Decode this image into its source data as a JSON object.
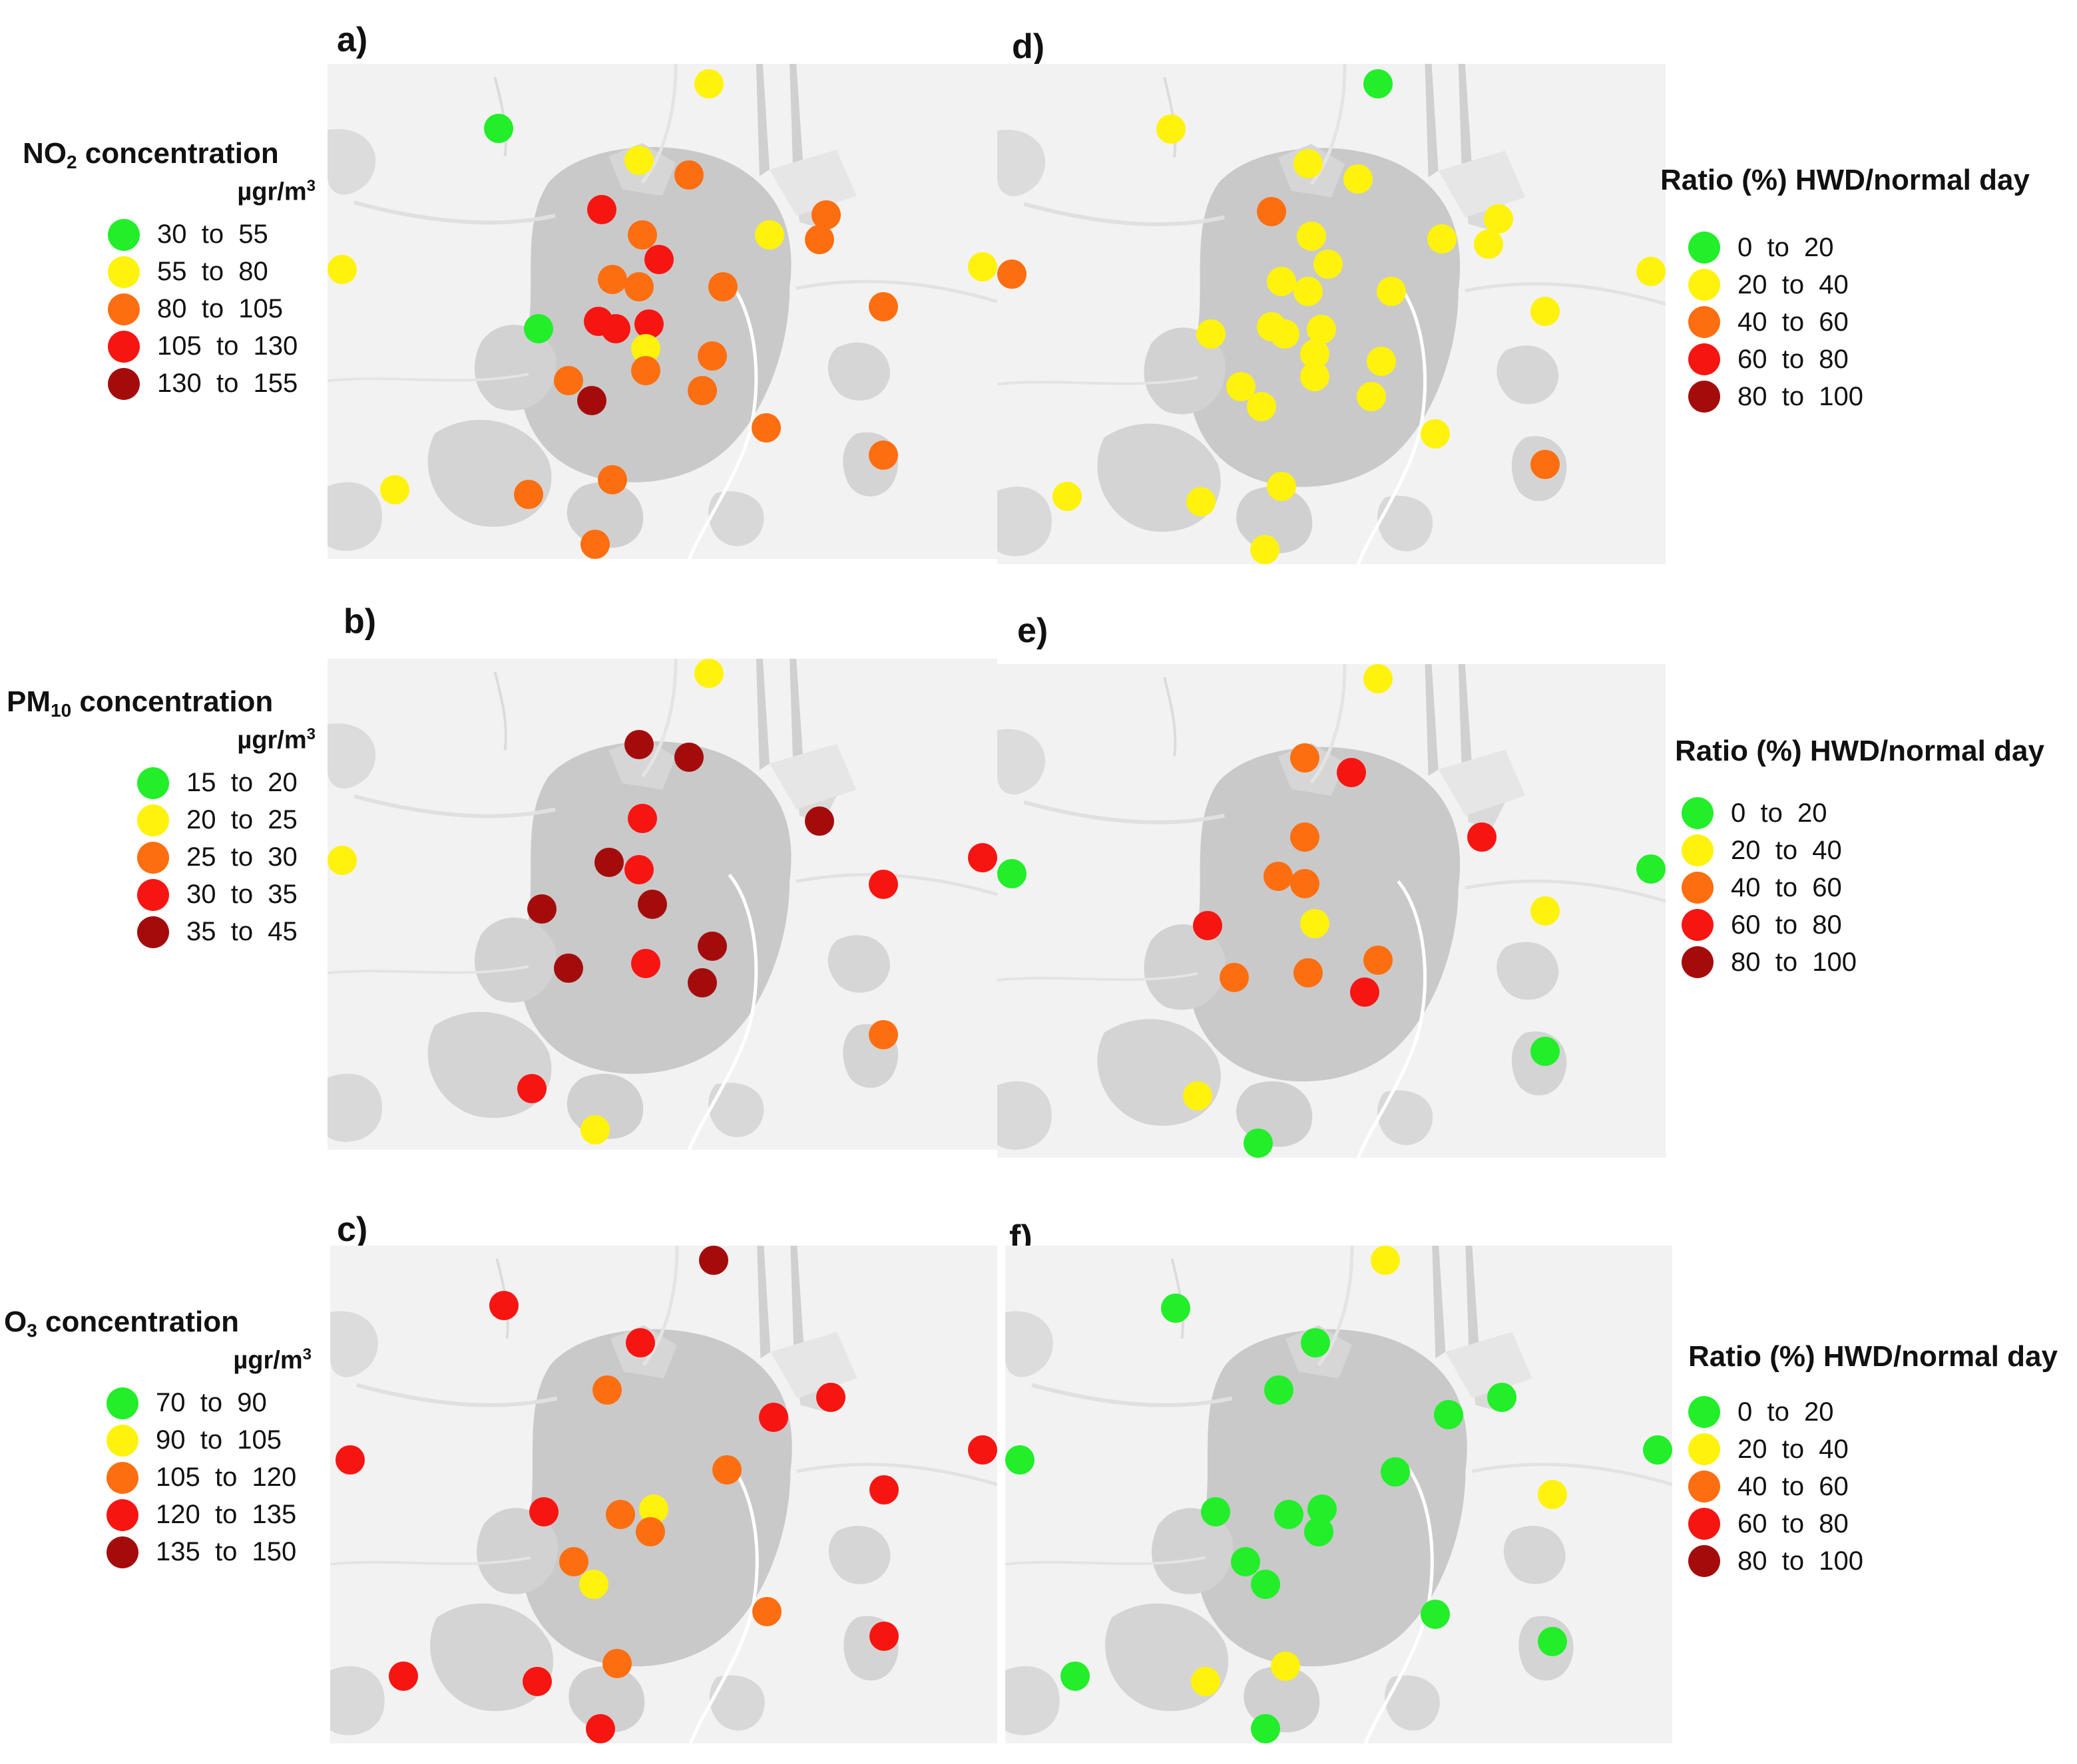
{
  "colors": {
    "c0": "#22ee2a",
    "c1": "#fff20d",
    "c2": "#fd6e10",
    "c3": "#f71512",
    "c4": "#a40c0c"
  },
  "panels": {
    "a": {
      "label": "a)",
      "points": [
        {
          "x": 0.255,
          "y": 0.13,
          "c": 0
        },
        {
          "x": 0.57,
          "y": 0.04,
          "c": 1
        },
        {
          "x": 0.465,
          "y": 0.195,
          "c": 1
        },
        {
          "x": 0.54,
          "y": 0.225,
          "c": 2
        },
        {
          "x": 0.41,
          "y": 0.295,
          "c": 3
        },
        {
          "x": 0.47,
          "y": 0.345,
          "c": 2
        },
        {
          "x": 0.495,
          "y": 0.395,
          "c": 3
        },
        {
          "x": 0.425,
          "y": 0.435,
          "c": 2
        },
        {
          "x": 0.465,
          "y": 0.45,
          "c": 2
        },
        {
          "x": 0.59,
          "y": 0.45,
          "c": 2
        },
        {
          "x": 0.66,
          "y": 0.345,
          "c": 1
        },
        {
          "x": 0.745,
          "y": 0.305,
          "c": 2
        },
        {
          "x": 0.735,
          "y": 0.355,
          "c": 2
        },
        {
          "x": 0.02,
          "y": 0.415,
          "c": 1
        },
        {
          "x": 0.315,
          "y": 0.535,
          "c": 0
        },
        {
          "x": 0.405,
          "y": 0.52,
          "c": 3
        },
        {
          "x": 0.43,
          "y": 0.535,
          "c": 3
        },
        {
          "x": 0.48,
          "y": 0.525,
          "c": 3
        },
        {
          "x": 0.475,
          "y": 0.575,
          "c": 1
        },
        {
          "x": 0.475,
          "y": 0.62,
          "c": 2
        },
        {
          "x": 0.575,
          "y": 0.59,
          "c": 2
        },
        {
          "x": 0.36,
          "y": 0.64,
          "c": 2
        },
        {
          "x": 0.395,
          "y": 0.68,
          "c": 4
        },
        {
          "x": 0.56,
          "y": 0.66,
          "c": 2
        },
        {
          "x": 0.655,
          "y": 0.735,
          "c": 2
        },
        {
          "x": 0.83,
          "y": 0.49,
          "c": 2
        },
        {
          "x": 0.83,
          "y": 0.79,
          "c": 2
        },
        {
          "x": 0.1,
          "y": 0.86,
          "c": 1
        },
        {
          "x": 0.425,
          "y": 0.84,
          "c": 2
        },
        {
          "x": 0.3,
          "y": 0.87,
          "c": 2
        },
        {
          "x": 0.4,
          "y": 0.985,
          "c": 2
        },
        {
          "x": 0.99,
          "y": 0.41,
          "c": 1
        }
      ]
    },
    "d": {
      "label": "d)",
      "points": [
        {
          "x": 0.57,
          "y": 0.04,
          "c": 0
        },
        {
          "x": 0.26,
          "y": 0.13,
          "c": 1
        },
        {
          "x": 0.465,
          "y": 0.2,
          "c": 1
        },
        {
          "x": 0.54,
          "y": 0.23,
          "c": 1
        },
        {
          "x": 0.41,
          "y": 0.295,
          "c": 2
        },
        {
          "x": 0.47,
          "y": 0.345,
          "c": 1
        },
        {
          "x": 0.665,
          "y": 0.35,
          "c": 1
        },
        {
          "x": 0.75,
          "y": 0.31,
          "c": 1
        },
        {
          "x": 0.735,
          "y": 0.36,
          "c": 1
        },
        {
          "x": 0.02,
          "y": 0.42,
          "c": 2
        },
        {
          "x": 0.495,
          "y": 0.4,
          "c": 1
        },
        {
          "x": 0.425,
          "y": 0.435,
          "c": 1
        },
        {
          "x": 0.465,
          "y": 0.455,
          "c": 1
        },
        {
          "x": 0.59,
          "y": 0.455,
          "c": 1
        },
        {
          "x": 0.32,
          "y": 0.54,
          "c": 1
        },
        {
          "x": 0.41,
          "y": 0.525,
          "c": 1
        },
        {
          "x": 0.43,
          "y": 0.54,
          "c": 1
        },
        {
          "x": 0.485,
          "y": 0.53,
          "c": 1
        },
        {
          "x": 0.475,
          "y": 0.58,
          "c": 1
        },
        {
          "x": 0.475,
          "y": 0.625,
          "c": 1
        },
        {
          "x": 0.575,
          "y": 0.595,
          "c": 1
        },
        {
          "x": 0.365,
          "y": 0.645,
          "c": 1
        },
        {
          "x": 0.395,
          "y": 0.685,
          "c": 1
        },
        {
          "x": 0.56,
          "y": 0.665,
          "c": 1
        },
        {
          "x": 0.655,
          "y": 0.74,
          "c": 1
        },
        {
          "x": 0.82,
          "y": 0.495,
          "c": 1
        },
        {
          "x": 0.82,
          "y": 0.8,
          "c": 2
        },
        {
          "x": 0.105,
          "y": 0.865,
          "c": 1
        },
        {
          "x": 0.425,
          "y": 0.845,
          "c": 1
        },
        {
          "x": 0.305,
          "y": 0.875,
          "c": 1
        },
        {
          "x": 0.4,
          "y": 0.99,
          "c": 1
        },
        {
          "x": 0.99,
          "y": 0.415,
          "c": 1
        }
      ]
    },
    "b": {
      "label": "b)",
      "points": [
        {
          "x": 0.57,
          "y": 0.01,
          "c": 1
        },
        {
          "x": 0.465,
          "y": 0.175,
          "c": 4
        },
        {
          "x": 0.54,
          "y": 0.2,
          "c": 4
        },
        {
          "x": 0.47,
          "y": 0.325,
          "c": 3
        },
        {
          "x": 0.735,
          "y": 0.33,
          "c": 4
        },
        {
          "x": 0.42,
          "y": 0.415,
          "c": 4
        },
        {
          "x": 0.465,
          "y": 0.43,
          "c": 3
        },
        {
          "x": 0.485,
          "y": 0.5,
          "c": 4
        },
        {
          "x": 0.32,
          "y": 0.51,
          "c": 4
        },
        {
          "x": 0.83,
          "y": 0.46,
          "c": 3
        },
        {
          "x": 0.99,
          "y": 0.405,
          "c": 3
        },
        {
          "x": 0.02,
          "y": 0.41,
          "c": 1
        },
        {
          "x": 0.475,
          "y": 0.62,
          "c": 3
        },
        {
          "x": 0.575,
          "y": 0.585,
          "c": 4
        },
        {
          "x": 0.36,
          "y": 0.63,
          "c": 4
        },
        {
          "x": 0.56,
          "y": 0.66,
          "c": 4
        },
        {
          "x": 0.83,
          "y": 0.765,
          "c": 2
        },
        {
          "x": 0.305,
          "y": 0.875,
          "c": 3
        },
        {
          "x": 0.4,
          "y": 0.96,
          "c": 1
        }
      ]
    },
    "e": {
      "label": "e)",
      "points": [
        {
          "x": 0.57,
          "y": 0.03,
          "c": 1
        },
        {
          "x": 0.46,
          "y": 0.19,
          "c": 2
        },
        {
          "x": 0.53,
          "y": 0.22,
          "c": 3
        },
        {
          "x": 0.46,
          "y": 0.35,
          "c": 2
        },
        {
          "x": 0.725,
          "y": 0.35,
          "c": 3
        },
        {
          "x": 0.42,
          "y": 0.43,
          "c": 2
        },
        {
          "x": 0.46,
          "y": 0.445,
          "c": 2
        },
        {
          "x": 0.475,
          "y": 0.525,
          "c": 1
        },
        {
          "x": 0.315,
          "y": 0.53,
          "c": 3
        },
        {
          "x": 0.82,
          "y": 0.5,
          "c": 1
        },
        {
          "x": 0.98,
          "y": 0.415,
          "c": 0
        },
        {
          "x": 0.02,
          "y": 0.425,
          "c": 0
        },
        {
          "x": 0.57,
          "y": 0.6,
          "c": 2
        },
        {
          "x": 0.465,
          "y": 0.625,
          "c": 2
        },
        {
          "x": 0.355,
          "y": 0.635,
          "c": 2
        },
        {
          "x": 0.55,
          "y": 0.665,
          "c": 3
        },
        {
          "x": 0.82,
          "y": 0.785,
          "c": 0
        },
        {
          "x": 0.3,
          "y": 0.875,
          "c": 1
        },
        {
          "x": 0.39,
          "y": 0.975,
          "c": 0
        }
      ]
    },
    "c": {
      "label": "c)",
      "points": [
        {
          "x": 0.575,
          "y": 0.025,
          "c": 4
        },
        {
          "x": 0.26,
          "y": 0.12,
          "c": 3
        },
        {
          "x": 0.465,
          "y": 0.195,
          "c": 3
        },
        {
          "x": 0.415,
          "y": 0.29,
          "c": 2
        },
        {
          "x": 0.665,
          "y": 0.345,
          "c": 3
        },
        {
          "x": 0.75,
          "y": 0.305,
          "c": 3
        },
        {
          "x": 0.03,
          "y": 0.43,
          "c": 3
        },
        {
          "x": 0.99,
          "y": 0.41,
          "c": 3
        },
        {
          "x": 0.595,
          "y": 0.45,
          "c": 2
        },
        {
          "x": 0.83,
          "y": 0.49,
          "c": 3
        },
        {
          "x": 0.32,
          "y": 0.535,
          "c": 3
        },
        {
          "x": 0.435,
          "y": 0.54,
          "c": 2
        },
        {
          "x": 0.485,
          "y": 0.53,
          "c": 1
        },
        {
          "x": 0.48,
          "y": 0.575,
          "c": 2
        },
        {
          "x": 0.365,
          "y": 0.635,
          "c": 2
        },
        {
          "x": 0.395,
          "y": 0.68,
          "c": 1
        },
        {
          "x": 0.655,
          "y": 0.735,
          "c": 2
        },
        {
          "x": 0.83,
          "y": 0.785,
          "c": 3
        },
        {
          "x": 0.11,
          "y": 0.865,
          "c": 3
        },
        {
          "x": 0.43,
          "y": 0.84,
          "c": 2
        },
        {
          "x": 0.31,
          "y": 0.875,
          "c": 3
        },
        {
          "x": 0.405,
          "y": 0.985,
          "c": 3
        }
      ]
    },
    "f": {
      "label": "f)",
      "points": [
        {
          "x": 0.57,
          "y": 0.025,
          "c": 1
        },
        {
          "x": 0.255,
          "y": 0.125,
          "c": 0
        },
        {
          "x": 0.465,
          "y": 0.195,
          "c": 0
        },
        {
          "x": 0.41,
          "y": 0.29,
          "c": 0
        },
        {
          "x": 0.665,
          "y": 0.34,
          "c": 0
        },
        {
          "x": 0.745,
          "y": 0.305,
          "c": 0
        },
        {
          "x": 0.02,
          "y": 0.43,
          "c": 0
        },
        {
          "x": 0.98,
          "y": 0.41,
          "c": 0
        },
        {
          "x": 0.585,
          "y": 0.455,
          "c": 0
        },
        {
          "x": 0.82,
          "y": 0.5,
          "c": 1
        },
        {
          "x": 0.315,
          "y": 0.535,
          "c": 0
        },
        {
          "x": 0.425,
          "y": 0.54,
          "c": 0
        },
        {
          "x": 0.475,
          "y": 0.53,
          "c": 0
        },
        {
          "x": 0.47,
          "y": 0.575,
          "c": 0
        },
        {
          "x": 0.36,
          "y": 0.635,
          "c": 0
        },
        {
          "x": 0.39,
          "y": 0.68,
          "c": 0
        },
        {
          "x": 0.645,
          "y": 0.74,
          "c": 0
        },
        {
          "x": 0.82,
          "y": 0.795,
          "c": 0
        },
        {
          "x": 0.105,
          "y": 0.865,
          "c": 0
        },
        {
          "x": 0.42,
          "y": 0.845,
          "c": 1
        },
        {
          "x": 0.3,
          "y": 0.875,
          "c": 1
        },
        {
          "x": 0.39,
          "y": 0.985,
          "c": 0
        }
      ]
    }
  },
  "legends": {
    "no2": {
      "title_main": "NO",
      "title_sub": "2",
      "title_rest": " concentration",
      "unit": "µgr/m",
      "unit_sup": "3",
      "items": [
        "30  to  55",
        "55  to  80",
        "80  to  105",
        "105  to  130",
        "130  to  155"
      ]
    },
    "pm10": {
      "title_main": "PM",
      "title_sub": "10",
      "title_rest": " concentration",
      "unit": "µgr/m",
      "unit_sup": "3",
      "items": [
        "15  to  20",
        "20  to  25",
        "25  to  30",
        "30  to  35",
        "35  to  45"
      ]
    },
    "o3": {
      "title_main": "O",
      "title_sub": "3",
      "title_rest": " concentration",
      "unit": "µgr/m",
      "unit_sup": "3",
      "items": [
        "70  to  90",
        "90  to  105",
        "105  to  120",
        "120  to  135",
        "135  to  150"
      ]
    },
    "ratio_d": {
      "title": "Ratio (%) HWD/normal day",
      "items": [
        "0  to  20",
        "20  to  40",
        "40  to  60",
        "60  to  80",
        "80  to  100"
      ]
    },
    "ratio_e": {
      "title": "Ratio (%) HWD/normal day",
      "items": [
        "0  to  20",
        "20  to  40",
        "40  to  60",
        "60  to  80",
        "80  to  100"
      ]
    },
    "ratio_f": {
      "title": "Ratio (%) HWD/normal day",
      "items": [
        "0  to  20",
        "20  to  40",
        "40  to  60",
        "60  to  80",
        "80  to  100"
      ]
    }
  }
}
